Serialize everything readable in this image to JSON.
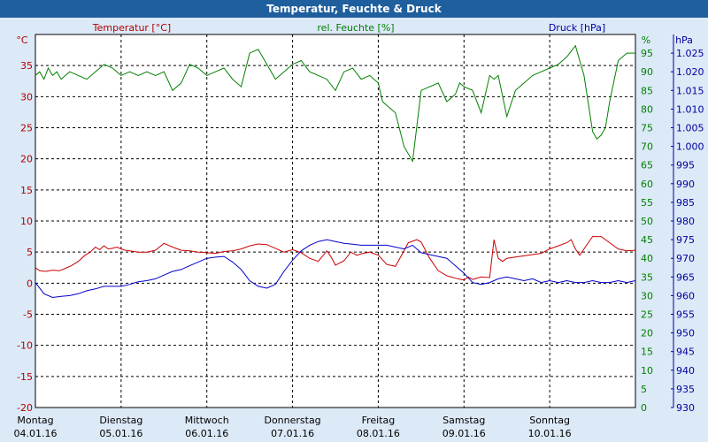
{
  "chart_data": {
    "type": "line",
    "title": "Temperatur, Feuchte & Druck",
    "axes": {
      "left": {
        "unit": "°C",
        "label": "Temperatur [°C]",
        "ylim": [
          -20,
          40
        ],
        "ticks": [
          -20,
          -15,
          -10,
          -5,
          0,
          5,
          10,
          15,
          20,
          25,
          30,
          35
        ],
        "color": "#b00000"
      },
      "middle": {
        "unit": "%",
        "label": "rel. Feuchte [%]",
        "ylim": [
          0,
          100
        ],
        "ticks": [
          0,
          5,
          10,
          15,
          20,
          25,
          30,
          35,
          40,
          45,
          50,
          55,
          60,
          65,
          70,
          75,
          80,
          85,
          90,
          95
        ],
        "color": "#008000"
      },
      "right": {
        "unit": "hPa",
        "label": "Druck [hPa]",
        "ylim": [
          930,
          1030
        ],
        "ticks": [
          "930",
          "935",
          "940",
          "945",
          "950",
          "955",
          "960",
          "965",
          "970",
          "975",
          "980",
          "985",
          "990",
          "995",
          "1.000",
          "1.005",
          "1.010",
          "1.015",
          "1.020",
          "1.025"
        ],
        "color": "#0000a0"
      }
    },
    "x_days": [
      {
        "day": "Montag",
        "date": "04.01.16"
      },
      {
        "day": "Dienstag",
        "date": "05.01.16"
      },
      {
        "day": "Mittwoch",
        "date": "06.01.16"
      },
      {
        "day": "Donnerstag",
        "date": "07.01.16"
      },
      {
        "day": "Freitag",
        "date": "08.01.16"
      },
      {
        "day": "Samstag",
        "date": "09.01.16"
      },
      {
        "day": "Sonntag",
        "date": "10.01.16"
      }
    ],
    "xlim_days": [
      0,
      7
    ],
    "grid": true,
    "series": [
      {
        "name": "Temperatur [°C]",
        "axis": "left",
        "color": "#cc0000",
        "x": [
          0,
          0.05,
          0.12,
          0.2,
          0.28,
          0.35,
          0.42,
          0.5,
          0.58,
          0.64,
          0.7,
          0.75,
          0.8,
          0.85,
          0.9,
          0.95,
          1.0,
          1.05,
          1.1,
          1.2,
          1.3,
          1.4,
          1.5,
          1.6,
          1.7,
          1.8,
          1.9,
          2.0,
          2.1,
          2.2,
          2.3,
          2.4,
          2.5,
          2.6,
          2.7,
          2.8,
          2.9,
          3.0,
          3.1,
          3.2,
          3.3,
          3.4,
          3.45,
          3.5,
          3.6,
          3.68,
          3.75,
          3.82,
          3.9,
          4.0,
          4.1,
          4.2,
          4.3,
          4.35,
          4.45,
          4.5,
          4.6,
          4.7,
          4.8,
          4.9,
          5.0,
          5.05,
          5.1,
          5.2,
          5.3,
          5.35,
          5.4,
          5.45,
          5.5,
          5.6,
          5.7,
          5.8,
          5.9,
          6.0,
          6.1,
          6.2,
          6.25,
          6.3,
          6.35,
          6.4,
          6.45,
          6.5,
          6.6,
          6.7,
          6.8,
          6.9,
          7.0
        ],
        "values": [
          2.5,
          2,
          1.9,
          2.1,
          2,
          2.4,
          2.8,
          3.5,
          4.5,
          5,
          5.8,
          5.4,
          6,
          5.5,
          5.6,
          5.8,
          5.5,
          5.3,
          5.2,
          5,
          5,
          5.3,
          6.4,
          5.8,
          5.3,
          5.2,
          5,
          4.9,
          4.8,
          5.1,
          5.2,
          5.5,
          6,
          6.3,
          6.2,
          5.6,
          5,
          5.4,
          4.9,
          4,
          3.5,
          5.2,
          4.2,
          2.9,
          3.6,
          5,
          4.5,
          4.8,
          5,
          4.5,
          3,
          2.7,
          5.2,
          6.5,
          7,
          6.6,
          4,
          2,
          1.2,
          0.8,
          0.5,
          1,
          0.6,
          1,
          0.9,
          7,
          4,
          3.5,
          4,
          4.2,
          4.4,
          4.6,
          4.8,
          5.5,
          6,
          6.5,
          7,
          5.5,
          4.5,
          5.5,
          6.5,
          7.5,
          7.5,
          6.5,
          5.5,
          5.2,
          5.3
        ]
      },
      {
        "name": "rel. Feuchte [%]",
        "axis": "middle",
        "color": "#008000",
        "x": [
          0,
          0.05,
          0.1,
          0.15,
          0.2,
          0.25,
          0.3,
          0.35,
          0.4,
          0.5,
          0.6,
          0.7,
          0.8,
          0.9,
          1.0,
          1.1,
          1.2,
          1.3,
          1.4,
          1.5,
          1.6,
          1.7,
          1.8,
          1.9,
          2.0,
          2.1,
          2.2,
          2.3,
          2.4,
          2.5,
          2.6,
          2.7,
          2.8,
          2.9,
          3.0,
          3.1,
          3.2,
          3.3,
          3.4,
          3.5,
          3.6,
          3.7,
          3.8,
          3.9,
          4.0,
          4.05,
          4.1,
          4.2,
          4.3,
          4.4,
          4.5,
          4.6,
          4.7,
          4.8,
          4.9,
          4.95,
          5.0,
          5.1,
          5.2,
          5.3,
          5.35,
          5.4,
          5.5,
          5.6,
          5.7,
          5.8,
          5.9,
          6.0,
          6.1,
          6.2,
          6.3,
          6.4,
          6.5,
          6.55,
          6.6,
          6.65,
          6.7,
          6.8,
          6.9,
          7.0
        ],
        "values": [
          89,
          90,
          88,
          91,
          89,
          90,
          88,
          89,
          90,
          89,
          88,
          90,
          92,
          91,
          89,
          90,
          89,
          90,
          89,
          90,
          85,
          87,
          92,
          91,
          89,
          90,
          91,
          88,
          86,
          95,
          96,
          92,
          88,
          90,
          92,
          93,
          90,
          89,
          88,
          85,
          90,
          91,
          88,
          89,
          87,
          82,
          81,
          79,
          70,
          66,
          85,
          86,
          87,
          82,
          84,
          87,
          86,
          85,
          79,
          89,
          88,
          89,
          78,
          85,
          87,
          89,
          90,
          91,
          92,
          94,
          97,
          89,
          74,
          72,
          73,
          75,
          82,
          93,
          95,
          95
        ]
      },
      {
        "name": "Druck [hPa]",
        "axis": "right",
        "color": "#0000cc",
        "x": [
          0,
          0.1,
          0.2,
          0.3,
          0.4,
          0.5,
          0.6,
          0.7,
          0.8,
          0.9,
          1.0,
          1.1,
          1.2,
          1.3,
          1.4,
          1.5,
          1.6,
          1.7,
          1.8,
          1.9,
          2.0,
          2.1,
          2.2,
          2.3,
          2.4,
          2.5,
          2.6,
          2.7,
          2.8,
          2.9,
          3.0,
          3.1,
          3.2,
          3.3,
          3.4,
          3.5,
          3.6,
          3.7,
          3.8,
          3.9,
          4.0,
          4.1,
          4.2,
          4.3,
          4.4,
          4.5,
          4.6,
          4.7,
          4.8,
          4.9,
          5.0,
          5.1,
          5.2,
          5.3,
          5.4,
          5.5,
          5.6,
          5.7,
          5.8,
          5.9,
          6.0,
          6.1,
          6.2,
          6.3,
          6.4,
          6.5,
          6.6,
          6.7,
          6.8,
          6.9,
          7.0
        ],
        "values": [
          963.5,
          960.5,
          959.5,
          959.8,
          960,
          960.5,
          961.3,
          961.8,
          962.5,
          962.5,
          962.5,
          963,
          963.7,
          964,
          964.5,
          965.5,
          966.5,
          967,
          968,
          969,
          970,
          970.3,
          970.5,
          969,
          967,
          964,
          962.5,
          962,
          963,
          966.5,
          969.5,
          972,
          973.5,
          974.5,
          975,
          974.5,
          974,
          973.8,
          973.5,
          973.5,
          973.5,
          973.5,
          973,
          972.5,
          973.5,
          971.5,
          971,
          970.5,
          970,
          968,
          966,
          963.5,
          963,
          963.5,
          964.5,
          965,
          964.5,
          964,
          964.5,
          963.5,
          964,
          963.5,
          964,
          963.5,
          963.5,
          964,
          963.5,
          963.5,
          964,
          963.5,
          964
        ]
      }
    ]
  }
}
